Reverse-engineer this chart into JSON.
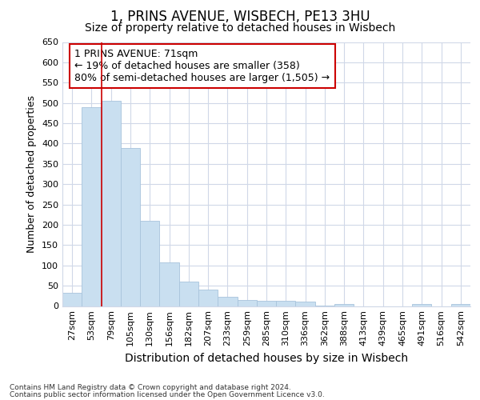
{
  "title1": "1, PRINS AVENUE, WISBECH, PE13 3HU",
  "title2": "Size of property relative to detached houses in Wisbech",
  "xlabel": "Distribution of detached houses by size in Wisbech",
  "ylabel": "Number of detached properties",
  "categories": [
    "27sqm",
    "53sqm",
    "79sqm",
    "105sqm",
    "130sqm",
    "156sqm",
    "182sqm",
    "207sqm",
    "233sqm",
    "259sqm",
    "285sqm",
    "310sqm",
    "336sqm",
    "362sqm",
    "388sqm",
    "413sqm",
    "439sqm",
    "465sqm",
    "491sqm",
    "516sqm",
    "542sqm"
  ],
  "values": [
    32,
    490,
    505,
    390,
    210,
    107,
    60,
    40,
    22,
    15,
    13,
    12,
    10,
    1,
    5,
    0,
    0,
    0,
    5,
    0,
    5
  ],
  "bar_color": "#c9dff0",
  "bar_edge_color": "#a8c4dc",
  "annotation_text": "1 PRINS AVENUE: 71sqm\n← 19% of detached houses are smaller (358)\n80% of semi-detached houses are larger (1,505) →",
  "annotation_box_facecolor": "white",
  "annotation_box_edgecolor": "#cc0000",
  "red_line_x": 1.5,
  "ylim": [
    0,
    650
  ],
  "yticks": [
    0,
    50,
    100,
    150,
    200,
    250,
    300,
    350,
    400,
    450,
    500,
    550,
    600,
    650
  ],
  "footer1": "Contains HM Land Registry data © Crown copyright and database right 2024.",
  "footer2": "Contains public sector information licensed under the Open Government Licence v3.0.",
  "bg_color": "#ffffff",
  "plot_bg_color": "#ffffff",
  "grid_color": "#d0d8e8",
  "title1_fontsize": 12,
  "title2_fontsize": 10,
  "xlabel_fontsize": 10,
  "ylabel_fontsize": 9,
  "tick_fontsize": 8,
  "annotation_fontsize": 9,
  "footer_fontsize": 6.5
}
